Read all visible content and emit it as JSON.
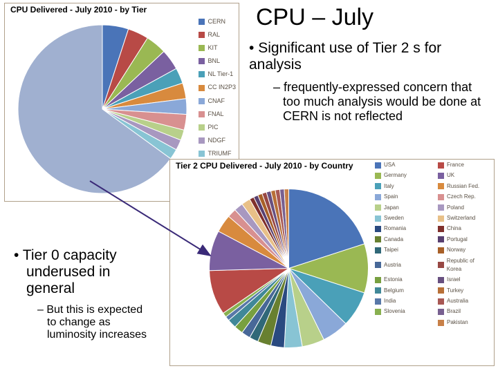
{
  "main_title": "CPU – July",
  "bullet1": "Significant use of Tier 2 s for analysis",
  "sub1": "– frequently-expressed concern that too much analysis would be done at CERN is not reflected",
  "bullet2": "•  Tier 0 capacity underused in general",
  "sub2": "– But this is expected to change as luminosity increases",
  "chart1": {
    "title": "CPU Delivered - July 2010 - by Tier",
    "type": "pie",
    "background": "#ffffff",
    "border_color": "#b0a08a",
    "title_fontsize": 12,
    "legend_fontsize": 9,
    "slices": [
      {
        "label": "CERN",
        "value": 5,
        "color": "#4a74b8"
      },
      {
        "label": "RAL",
        "value": 4,
        "color": "#b84a46"
      },
      {
        "label": "KIT",
        "value": 4,
        "color": "#9ab853"
      },
      {
        "label": "BNL",
        "value": 4,
        "color": "#7a60a0"
      },
      {
        "label": "NL Tier-1",
        "value": 3,
        "color": "#4aa0b8"
      },
      {
        "label": "CC IN2P3",
        "value": 3,
        "color": "#d88a3e"
      },
      {
        "label": "CNAF",
        "value": 3,
        "color": "#8aa8d8"
      },
      {
        "label": "FNAL",
        "value": 3,
        "color": "#d89090"
      },
      {
        "label": "PIC",
        "value": 2,
        "color": "#b8d08a"
      },
      {
        "label": "NDGF",
        "value": 2,
        "color": "#a898c0"
      },
      {
        "label": "TRIUMF",
        "value": 2,
        "color": "#88c4d4"
      },
      {
        "label": "",
        "value": 65,
        "color": "#a0b0d0"
      }
    ]
  },
  "chart2": {
    "title": "Tier 2 CPU Delivered - July 2010 - by Country",
    "type": "pie",
    "background": "#ffffff",
    "border_color": "#b0a08a",
    "title_fontsize": 12,
    "legend_fontsize": 8,
    "slices": [
      {
        "label": "USA",
        "value": 22,
        "color": "#4a74b8"
      },
      {
        "label": "Germany",
        "value": 11,
        "color": "#9ab853"
      },
      {
        "label": "Italy",
        "value": 8,
        "color": "#4aa0b8"
      },
      {
        "label": "Spain",
        "value": 6,
        "color": "#8aa8d8"
      },
      {
        "label": "Japan",
        "value": 5,
        "color": "#b8d08a"
      },
      {
        "label": "Sweden",
        "value": 4,
        "color": "#88c4d4"
      },
      {
        "label": "Romania",
        "value": 3,
        "color": "#2a4a80"
      },
      {
        "label": "Canada",
        "value": 3,
        "color": "#688030"
      },
      {
        "label": "Taipei",
        "value": 2,
        "color": "#306878"
      },
      {
        "label": "Austria",
        "value": 2,
        "color": "#486898"
      },
      {
        "label": "Estonia",
        "value": 2,
        "color": "#78a040"
      },
      {
        "label": "Belgium",
        "value": 2,
        "color": "#408898"
      },
      {
        "label": "India",
        "value": 1,
        "color": "#5878a8"
      },
      {
        "label": "Slovenia",
        "value": 1,
        "color": "#88b050"
      },
      {
        "label": "France",
        "value": 10,
        "color": "#b84a46"
      },
      {
        "label": "UK",
        "value": 9,
        "color": "#7a60a0"
      },
      {
        "label": "Russian Fed.",
        "value": 4,
        "color": "#d88a3e"
      },
      {
        "label": "Czech Rep.",
        "value": 2,
        "color": "#d89090"
      },
      {
        "label": "Poland",
        "value": 2,
        "color": "#a898c0"
      },
      {
        "label": "Switzerland",
        "value": 2,
        "color": "#e8c088"
      },
      {
        "label": "China",
        "value": 1,
        "color": "#80302c"
      },
      {
        "label": "Portugal",
        "value": 1,
        "color": "#584070"
      },
      {
        "label": "Norway",
        "value": 1,
        "color": "#a86028"
      },
      {
        "label": "Republic of Korea",
        "value": 1,
        "color": "#984844"
      },
      {
        "label": "Israel",
        "value": 1,
        "color": "#685080"
      },
      {
        "label": "Turkey",
        "value": 1,
        "color": "#b87038"
      },
      {
        "label": "Australia",
        "value": 1,
        "color": "#a85854"
      },
      {
        "label": "Brazil",
        "value": 1,
        "color": "#786090"
      },
      {
        "label": "Pakistan",
        "value": 1,
        "color": "#c88048"
      }
    ],
    "legend_order": [
      "USA",
      "France",
      "Germany",
      "UK",
      "Italy",
      "Russian Fed.",
      "Spain",
      "Czech Rep.",
      "Japan",
      "Poland",
      "Sweden",
      "Switzerland",
      "Romania",
      "China",
      "Canada",
      "Portugal",
      "Taipei",
      "Norway",
      "Austria",
      "Republic of Korea",
      "Estonia",
      "Israel",
      "Belgium",
      "Turkey",
      "India",
      "Australia",
      "Slovenia",
      "Brazil",
      "",
      "Pakistan"
    ]
  },
  "arrow": {
    "color": "#3a2a78",
    "stroke_width": 2
  }
}
